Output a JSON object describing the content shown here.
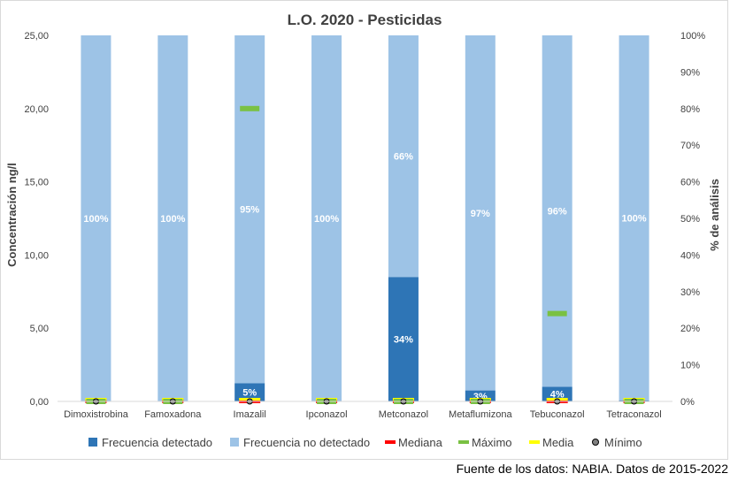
{
  "chart_data": {
    "type": "bar",
    "title": "L.O. 2020 - Pesticidas",
    "ylabel": "Concentración ng/l",
    "y2label": "% de análisis",
    "ylim": [
      0,
      25
    ],
    "yticks": [
      "0,00",
      "5,00",
      "10,00",
      "15,00",
      "20,00",
      "25,00"
    ],
    "y2lim": [
      0,
      100
    ],
    "y2ticks": [
      "0%",
      "10%",
      "20%",
      "30%",
      "40%",
      "50%",
      "60%",
      "70%",
      "80%",
      "90%",
      "100%"
    ],
    "categories": [
      "Dimoxistrobina",
      "Famoxadona",
      "Imazalil",
      "Ipconazol",
      "Metconazol",
      "Metaflumizona",
      "Tebuconazol",
      "Tetraconazol"
    ],
    "grid": false,
    "legend_position": "bottom",
    "series": [
      {
        "name": "Frecuencia detectado",
        "axis": "right",
        "color": "#2e75b6",
        "values": [
          0,
          0,
          5,
          0,
          34,
          3,
          4,
          0.3
        ],
        "labels": [
          "",
          "",
          "5%",
          "",
          "34%",
          "3%",
          "4%",
          ""
        ]
      },
      {
        "name": "Frecuencia no detectado",
        "axis": "right",
        "color": "#9dc3e6",
        "values": [
          100,
          100,
          95,
          100,
          66,
          97,
          96,
          99.7
        ],
        "labels": [
          "100%",
          "100%",
          "95%",
          "100%",
          "66%",
          "97%",
          "96%",
          "100%"
        ]
      },
      {
        "name": "Mediana",
        "axis": "left",
        "color": "#ff0000",
        "values": [
          0,
          0,
          0,
          0,
          0,
          0,
          0,
          0
        ]
      },
      {
        "name": "Máximo",
        "axis": "left",
        "color": "#7ac143",
        "values": [
          0,
          0,
          20.0,
          0,
          0,
          0,
          6.0,
          0
        ]
      },
      {
        "name": "Media",
        "axis": "left",
        "color": "#ffff00",
        "values": [
          0,
          0,
          0,
          0,
          0,
          0,
          0,
          0
        ]
      },
      {
        "name": "Mínimo",
        "axis": "left",
        "color": "#808080",
        "values": [
          0,
          0,
          0,
          0,
          0,
          0,
          0,
          0
        ]
      }
    ]
  },
  "source_note": "Fuente de los datos: NABIA. Datos de 2015-2022"
}
